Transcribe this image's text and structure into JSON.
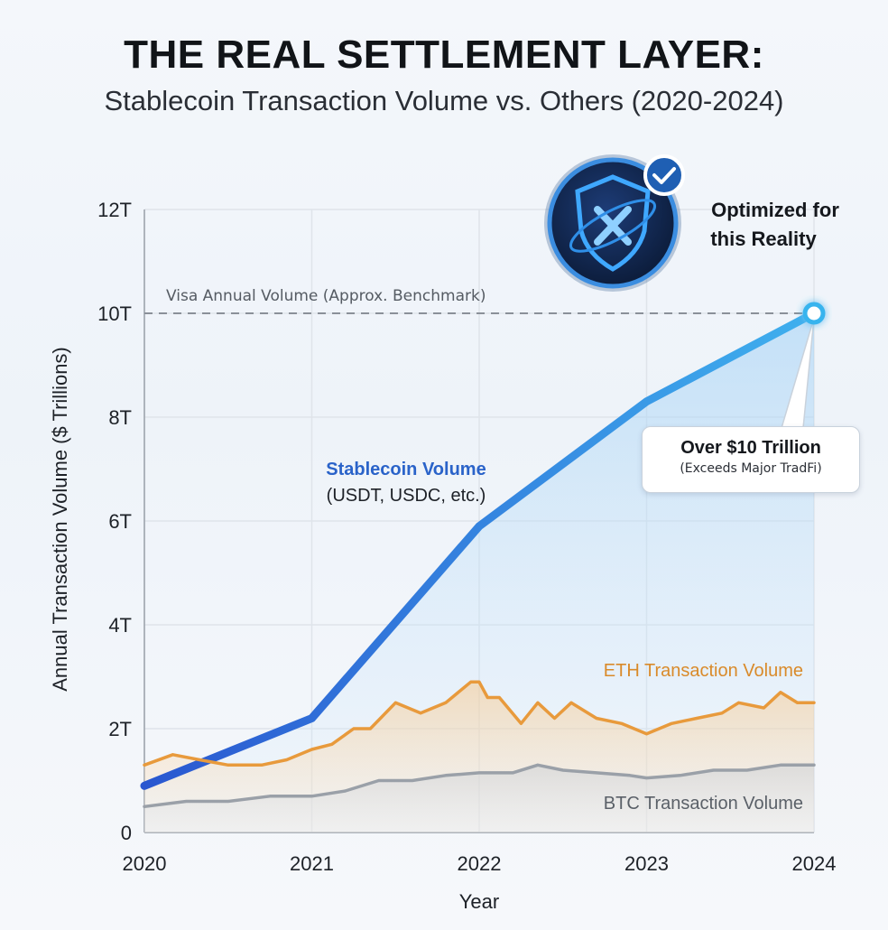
{
  "header": {
    "title": "THE REAL SETTLEMENT LAYER:",
    "subtitle": "Stablecoin Transaction Volume vs. Others (2020-2024)"
  },
  "badge": {
    "icon": "x-shield-logo-icon",
    "check_icon": "checkmark-icon",
    "line1": "Optimized for",
    "line2": "this Reality"
  },
  "callout": {
    "main": "Over $10 Trillion",
    "sub": "(Exceeds Major TradFi)"
  },
  "colors": {
    "stablecoin": "#2f86e6",
    "stablecoin_dark": "#2a63d4",
    "eth": "#e89a3c",
    "btc": "#9aa0a8",
    "grid": "#d8dee6"
  },
  "chart_data": {
    "type": "line",
    "xlabel": "Year",
    "ylabel": "Annual Transaction Volume ($ Trillions)",
    "x_ticks": [
      "2020",
      "2021",
      "2022",
      "2023",
      "2024"
    ],
    "y_ticks": [
      "0",
      "2T",
      "4T",
      "6T",
      "8T",
      "10T",
      "12T"
    ],
    "xlim": [
      2020,
      2024
    ],
    "ylim": [
      0,
      12
    ],
    "grid": true,
    "benchmark": {
      "label": "Visa Annual Volume (Approx. Benchmark)",
      "value": 10
    },
    "series": [
      {
        "name": "Stablecoin Volume",
        "note": "(USDT, USDC, etc.)",
        "x": [
          2020,
          2021,
          2022,
          2023,
          2024
        ],
        "y": [
          0.9,
          2.2,
          5.9,
          8.3,
          10.0
        ]
      },
      {
        "name": "ETH Transaction Volume",
        "x": [
          2020,
          2020.17,
          2020.33,
          2020.5,
          2020.7,
          2020.85,
          2021,
          2021.12,
          2021.25,
          2021.35,
          2021.5,
          2021.65,
          2021.8,
          2021.95,
          2022,
          2022.05,
          2022.12,
          2022.25,
          2022.35,
          2022.45,
          2022.55,
          2022.7,
          2022.85,
          2023,
          2023.15,
          2023.3,
          2023.45,
          2023.55,
          2023.7,
          2023.8,
          2023.9,
          2024
        ],
        "y": [
          1.3,
          1.5,
          1.4,
          1.3,
          1.3,
          1.4,
          1.6,
          1.7,
          2.0,
          2.0,
          2.5,
          2.3,
          2.5,
          2.9,
          2.9,
          2.6,
          2.6,
          2.1,
          2.5,
          2.2,
          2.5,
          2.2,
          2.1,
          1.9,
          2.1,
          2.2,
          2.3,
          2.5,
          2.4,
          2.7,
          2.5,
          2.5
        ]
      },
      {
        "name": "BTC Transaction Volume",
        "x": [
          2020,
          2020.25,
          2020.5,
          2020.75,
          2021,
          2021.2,
          2021.4,
          2021.6,
          2021.8,
          2022,
          2022.2,
          2022.35,
          2022.5,
          2022.7,
          2022.9,
          2023,
          2023.2,
          2023.4,
          2023.6,
          2023.8,
          2024
        ],
        "y": [
          0.5,
          0.6,
          0.6,
          0.7,
          0.7,
          0.8,
          1.0,
          1.0,
          1.1,
          1.15,
          1.15,
          1.3,
          1.2,
          1.15,
          1.1,
          1.05,
          1.1,
          1.2,
          1.2,
          1.3,
          1.3
        ]
      }
    ]
  }
}
